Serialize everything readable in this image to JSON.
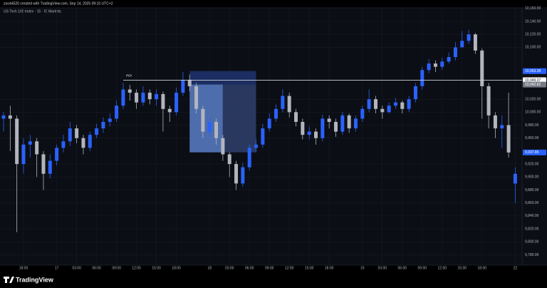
{
  "chart_data": {
    "type": "candlestick",
    "credit": "zoo44520 created with TradingView.com, Sep 14, 2025 09:10 UTC+2",
    "title": "US Tech 100 Index · 15 · IC Markets",
    "brand": "TradingView",
    "up_color": "#2962ff",
    "down_color": "#b2b5be",
    "grid": true,
    "categories": [
      null,
      null,
      null,
      "18:00",
      null,
      null,
      null,
      null,
      "17",
      null,
      null,
      "03:00",
      null,
      null,
      "06:00",
      null,
      null,
      "09:00",
      null,
      null,
      "12:00",
      null,
      null,
      "15:00",
      null,
      null,
      "18:00",
      null,
      null,
      null,
      null,
      "18",
      null,
      null,
      "03:00",
      null,
      null,
      "06:00",
      null,
      null,
      "09:00",
      null,
      null,
      "12:00",
      null,
      null,
      "15:00",
      null,
      null,
      "18:00",
      null,
      null,
      null,
      null,
      "19",
      null,
      null,
      "03:00",
      null,
      null,
      "06:00",
      null,
      null,
      "09:00",
      null,
      null,
      "12:00",
      null,
      null,
      "15:00",
      null,
      null,
      "18:00",
      null,
      null,
      null,
      null,
      "22"
    ],
    "open": [
      9990,
      9995,
      9990,
      9920,
      9950,
      9955,
      9935,
      9905,
      9925,
      9945,
      9955,
      9975,
      9960,
      9945,
      9965,
      9975,
      9985,
      9990,
      10010,
      10035,
      10030,
      10015,
      10030,
      10020,
      10028,
      10005,
      10000,
      10030,
      10050,
      10040,
      10005,
      9970,
      9985,
      9960,
      9935,
      9920,
      9890,
      9915,
      9945,
      9950,
      9975,
      9990,
      10005,
      10025,
      10000,
      9985,
      9965,
      9970,
      9960,
      9990,
      9985,
      9970,
      9995,
      9975,
      9990,
      10005,
      10020,
      10005,
      10000,
      10010,
      10015,
      10005,
      10020,
      10040,
      10065,
      10075,
      10070,
      10078,
      10085,
      10100,
      10110,
      10120,
      10095,
      10040,
      9995,
      9975,
      9980,
      9890
    ],
    "high": [
      10000,
      10010,
      9995,
      9960,
      9965,
      9960,
      9940,
      9935,
      9950,
      9965,
      9985,
      9980,
      9965,
      9970,
      9982,
      9992,
      9998,
      10018,
      10045,
      10042,
      10035,
      10040,
      10035,
      10035,
      10032,
      10010,
      10038,
      10062,
      10058,
      10045,
      10010,
      9992,
      9990,
      9965,
      9938,
      9925,
      9922,
      9950,
      9958,
      9982,
      9998,
      10012,
      10035,
      10030,
      10005,
      9990,
      9978,
      9975,
      9996,
      9995,
      9990,
      10000,
      9998,
      9995,
      10010,
      10035,
      10025,
      10010,
      10015,
      10022,
      10018,
      10025,
      10045,
      10070,
      10082,
      10080,
      10084,
      10092,
      10108,
      10125,
      10127,
      10122,
      10098,
      10045,
      10000,
      9995,
      10030,
      9915
    ],
    "low": [
      9970,
      9940,
      9815,
      9905,
      9930,
      9900,
      9880,
      9898,
      9918,
      9938,
      9948,
      9952,
      9935,
      9940,
      9960,
      9968,
      9978,
      9985,
      10005,
      10018,
      10005,
      10010,
      10012,
      10010,
      9970,
      9985,
      9995,
      10025,
      10032,
      9998,
      9960,
      9962,
      9950,
      9925,
      9900,
      9880,
      9885,
      9910,
      9938,
      9945,
      9970,
      9985,
      10000,
      9992,
      9978,
      9958,
      9958,
      9950,
      9955,
      9975,
      9962,
      9965,
      9968,
      9970,
      9985,
      10000,
      9998,
      9990,
      9998,
      10005,
      9998,
      10000,
      10015,
      10035,
      10060,
      10062,
      10065,
      10075,
      10080,
      10100,
      10105,
      10090,
      9990,
      9975,
      9960,
      9945,
      9930,
      9860
    ],
    "close": [
      9995,
      9990,
      9920,
      9950,
      9955,
      9935,
      9905,
      9925,
      9945,
      9955,
      9975,
      9960,
      9945,
      9965,
      9975,
      9985,
      9990,
      10010,
      10035,
      10030,
      10015,
      10030,
      10020,
      10028,
      10005,
      10000,
      10030,
      10050,
      10040,
      10005,
      9970,
      9985,
      9960,
      9935,
      9920,
      9890,
      9915,
      9945,
      9950,
      9975,
      9990,
      10005,
      10025,
      10000,
      9985,
      9965,
      9970,
      9960,
      9990,
      9985,
      9970,
      9995,
      9975,
      9990,
      10005,
      10020,
      10005,
      10000,
      10010,
      10015,
      10005,
      10020,
      10040,
      10065,
      10075,
      10070,
      10078,
      10085,
      10100,
      10110,
      10120,
      10095,
      10040,
      9995,
      9975,
      9980,
      9937.85,
      9905
    ],
    "ylim": [
      9764,
      10162
    ],
    "yticks": [
      {
        "value": 9780,
        "label": "9,780.00"
      },
      {
        "value": 9800,
        "label": "9,800.00"
      },
      {
        "value": 9820,
        "label": "9,820.00"
      },
      {
        "value": 9840,
        "label": "9,840.00"
      },
      {
        "value": 9860,
        "label": "9,860.00"
      },
      {
        "value": 9880,
        "label": "9,880.00"
      },
      {
        "value": 9900,
        "label": "9,900.00"
      },
      {
        "value": 9920,
        "label": "9,920.00"
      },
      {
        "value": 9960,
        "label": "9,960.00"
      },
      {
        "value": 9980,
        "label": "9,980.00"
      },
      {
        "value": 10000,
        "label": "10,000.00"
      },
      {
        "value": 10020,
        "label": "10,020.00"
      },
      {
        "value": 10100,
        "label": "10,100.00"
      },
      {
        "value": 10120,
        "label": "10,120.00"
      },
      {
        "value": 10140,
        "label": "10,140.00"
      },
      {
        "value": 10160,
        "label": "10,160.00"
      }
    ],
    "price_labels": [
      {
        "value": 10063.38,
        "label": "10,063.38",
        "color": "#2962ff"
      },
      {
        "value": 10049.37,
        "label": "10,049.37",
        "color": "#ffffff"
      },
      {
        "value": 10042.62,
        "label": "10,042.62",
        "color": "#787b86"
      },
      {
        "value": 9937.85,
        "label": "9,937.85",
        "color": "#2962ff"
      }
    ],
    "hline": {
      "value": 10049.37,
      "start": 18,
      "label": "POI"
    },
    "position": {
      "start": 28,
      "split": 33,
      "end": 38,
      "top": 10063.38,
      "entry": 10042.62,
      "bottom": 9938
    }
  }
}
